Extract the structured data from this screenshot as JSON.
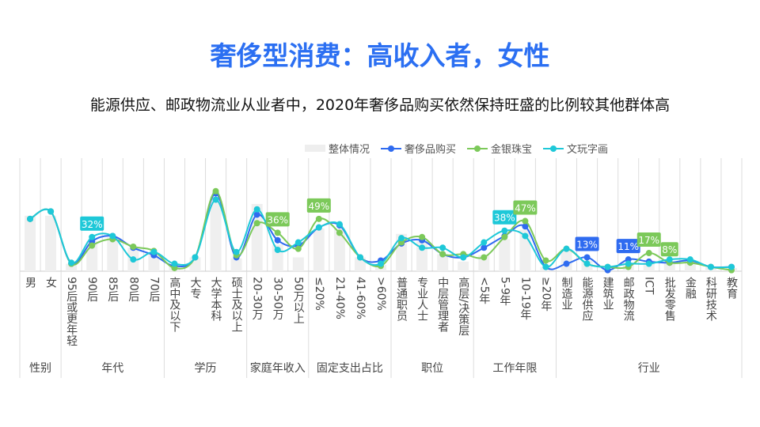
{
  "title": "奢侈型消费：高收入者，女性",
  "subtitle": "能源供应、邮政物流业从业者中，2020年奢侈品购买依然保持旺盛的比例较其他群体高",
  "chart_data": {
    "type": "line",
    "categories": [
      "男",
      "女",
      "95后或更年轻",
      "90后",
      "85后",
      "80后",
      "70后",
      "高中及以下",
      "大专",
      "大学本科",
      "硕士及以上",
      "20-30万",
      "30-50万",
      "50万以上",
      "≤20%",
      "21-40%",
      "41-60%",
      ">60%",
      "普通职员",
      "专业人士",
      "中层管理者",
      "高层/决策层",
      "<5年",
      "5-9年",
      "10-19年",
      "≥20年",
      "制造业",
      "能源供应",
      "建筑业",
      "邮政物流",
      "ICT",
      "批发零售",
      "金融",
      "科研技术",
      "教育"
    ],
    "groups": [
      {
        "label": "性别",
        "count": 2
      },
      {
        "label": "年代",
        "count": 5
      },
      {
        "label": "学历",
        "count": 4
      },
      {
        "label": "家庭年收入",
        "count": 3
      },
      {
        "label": "固定支出占比",
        "count": 4
      },
      {
        "label": "职位",
        "count": 4
      },
      {
        "label": "工作年限",
        "count": 4
      },
      {
        "label": "行业",
        "count": 9
      }
    ],
    "unit": "%",
    "ylim": [
      0,
      90
    ],
    "grid": "vertical",
    "legend_position": "top-right",
    "series": [
      {
        "name": "整体情况",
        "type": "bar",
        "color": "#efefef",
        "values": [
          52,
          52,
          7,
          28,
          32,
          22,
          17,
          5,
          13,
          70,
          12,
          63,
          25,
          13,
          40,
          40,
          13,
          6,
          35,
          28,
          16,
          9,
          15,
          30,
          39,
          4,
          21,
          10,
          3,
          8,
          10,
          8,
          10,
          4,
          3
        ]
      },
      {
        "name": "奢侈品购买",
        "type": "line",
        "color": "#2f6bf0",
        "values": [
          49,
          56,
          7,
          28,
          33,
          22,
          15,
          5,
          13,
          73,
          13,
          53,
          29,
          24,
          41,
          43,
          13,
          10,
          26,
          29,
          16,
          13,
          22,
          33,
          42,
          4,
          7,
          13,
          1,
          11,
          9,
          8,
          10,
          4,
          4
        ]
      },
      {
        "name": "金银珠宝",
        "type": "line",
        "color": "#7cc95a",
        "values": [
          49,
          56,
          7,
          24,
          30,
          23,
          19,
          3,
          13,
          75,
          15,
          45,
          36,
          21,
          49,
          36,
          13,
          5,
          27,
          32,
          16,
          16,
          13,
          32,
          47,
          10,
          21,
          7,
          4,
          4,
          17,
          8,
          8,
          4,
          1
        ]
      },
      {
        "name": "文玩字画",
        "type": "line",
        "color": "#1ec8d8",
        "values": [
          49,
          56,
          8,
          32,
          33,
          11,
          18,
          7,
          13,
          67,
          18,
          58,
          20,
          27,
          41,
          44,
          13,
          7,
          31,
          22,
          22,
          13,
          27,
          38,
          33,
          4,
          21,
          7,
          4,
          7,
          7,
          11,
          11,
          4,
          4
        ]
      }
    ],
    "annotations": [
      {
        "series": 3,
        "category": "90后",
        "text": "32%"
      },
      {
        "series": 2,
        "category": "30-50万",
        "text": "36%"
      },
      {
        "series": 2,
        "category": "≤20%",
        "text": "49%"
      },
      {
        "series": 3,
        "category": "5-9年",
        "text": "38%"
      },
      {
        "series": 2,
        "category": "10-19年",
        "text": "47%"
      },
      {
        "series": 1,
        "category": "能源供应",
        "text": "13%"
      },
      {
        "series": 1,
        "category": "邮政物流",
        "text": "11%"
      },
      {
        "series": 2,
        "category": "ICT",
        "text": "17%"
      },
      {
        "series": 2,
        "category": "批发零售",
        "text": "8%"
      }
    ]
  }
}
